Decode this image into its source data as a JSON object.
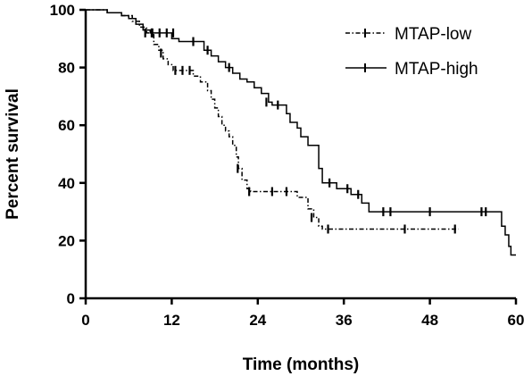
{
  "chart_data": {
    "type": "line",
    "subtype": "kaplan-meier",
    "xlabel": "Time (months)",
    "ylabel": "Percent survival",
    "xlim": [
      0,
      60
    ],
    "ylim": [
      0,
      100
    ],
    "x_ticks": [
      "0",
      "12",
      "24",
      "36",
      "48",
      "60"
    ],
    "y_ticks": [
      "0",
      "20",
      "40",
      "60",
      "80",
      "100"
    ],
    "grid": false,
    "legend_position": "top-right",
    "series": [
      {
        "name": "MTAP-low",
        "line_style": "dash-dot",
        "steps": [
          [
            0,
            100
          ],
          [
            3,
            100
          ],
          [
            3,
            99
          ],
          [
            5,
            98
          ],
          [
            6.5,
            96
          ],
          [
            7.5,
            94
          ],
          [
            8.5,
            92
          ],
          [
            9.5,
            88
          ],
          [
            10.2,
            86
          ],
          [
            10.8,
            83
          ],
          [
            11.5,
            81
          ],
          [
            12.2,
            79
          ],
          [
            15,
            79
          ],
          [
            15,
            77
          ],
          [
            16,
            75
          ],
          [
            17,
            72
          ],
          [
            17.5,
            69
          ],
          [
            18,
            66
          ],
          [
            18.5,
            63
          ],
          [
            19,
            60
          ],
          [
            19.5,
            58
          ],
          [
            20,
            56
          ],
          [
            20.5,
            53
          ],
          [
            21,
            49
          ],
          [
            21.3,
            45
          ],
          [
            21.8,
            41
          ],
          [
            22.5,
            38
          ],
          [
            23,
            37
          ],
          [
            29.5,
            37
          ],
          [
            29.5,
            35
          ],
          [
            31,
            31
          ],
          [
            31.8,
            28
          ],
          [
            32.5,
            25
          ],
          [
            33,
            24
          ],
          [
            52,
            24
          ]
        ],
        "censor_times": [
          [
            8.3,
            92
          ],
          [
            9.2,
            92
          ],
          [
            10.5,
            85
          ],
          [
            12.5,
            79
          ],
          [
            13.5,
            79
          ],
          [
            14.5,
            79
          ],
          [
            21.2,
            45
          ],
          [
            22.8,
            37
          ],
          [
            26,
            37
          ],
          [
            28,
            37
          ],
          [
            31.5,
            28
          ],
          [
            33.8,
            24
          ],
          [
            44.5,
            24
          ],
          [
            51.5,
            24
          ]
        ]
      },
      {
        "name": "MTAP-high",
        "line_style": "solid",
        "steps": [
          [
            0,
            100
          ],
          [
            3,
            100
          ],
          [
            3,
            99
          ],
          [
            5,
            98
          ],
          [
            6,
            97
          ],
          [
            7,
            95
          ],
          [
            8,
            93
          ],
          [
            9,
            92
          ],
          [
            12,
            92
          ],
          [
            12,
            90
          ],
          [
            13,
            89
          ],
          [
            16,
            89
          ],
          [
            16.5,
            86
          ],
          [
            17.5,
            84
          ],
          [
            18.5,
            82
          ],
          [
            19.5,
            80
          ],
          [
            20.5,
            78
          ],
          [
            21.5,
            76
          ],
          [
            22.5,
            75
          ],
          [
            23.5,
            73
          ],
          [
            24.5,
            71
          ],
          [
            25.5,
            68
          ],
          [
            26,
            67
          ],
          [
            27.5,
            67
          ],
          [
            28,
            64
          ],
          [
            28.5,
            61
          ],
          [
            29.5,
            59
          ],
          [
            30,
            56
          ],
          [
            31,
            53
          ],
          [
            32,
            53
          ],
          [
            32.5,
            45
          ],
          [
            33,
            40
          ],
          [
            35,
            38
          ],
          [
            37,
            36
          ],
          [
            38.5,
            33
          ],
          [
            39.5,
            30
          ],
          [
            58,
            30
          ],
          [
            58,
            25
          ],
          [
            58.5,
            22
          ],
          [
            59,
            18
          ],
          [
            59.3,
            15
          ],
          [
            60,
            15
          ]
        ],
        "censor_times": [
          [
            9.3,
            92
          ],
          [
            10.3,
            92
          ],
          [
            11.3,
            92
          ],
          [
            12.2,
            92
          ],
          [
            15,
            89
          ],
          [
            17,
            86
          ],
          [
            20,
            80
          ],
          [
            25.2,
            68
          ],
          [
            26.8,
            67
          ],
          [
            34,
            40
          ],
          [
            36.5,
            38
          ],
          [
            38,
            36
          ],
          [
            41.5,
            30
          ],
          [
            42.5,
            30
          ],
          [
            48,
            30
          ],
          [
            55.2,
            30
          ],
          [
            55.8,
            30
          ]
        ]
      }
    ]
  }
}
